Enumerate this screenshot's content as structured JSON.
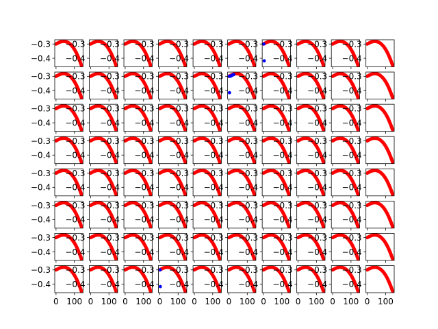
{
  "figure": {
    "rows": 8,
    "cols": 10
  },
  "chart_data": {
    "type": "scatter",
    "grid": false,
    "legend": "none",
    "xlim": [
      -7,
      147
    ],
    "ylim": [
      -0.46,
      -0.27
    ],
    "xticks": [
      0,
      100
    ],
    "xtick_labels": [
      "0",
      "100"
    ],
    "yticks": [
      -0.3,
      -0.4
    ],
    "ytick_labels": [
      "−0.3",
      "−0.4"
    ],
    "curve_color": "#ff0000",
    "marker_color": "#0000ff",
    "curve": {
      "x": [
        0,
        10,
        20,
        30,
        40,
        50,
        60,
        70,
        80,
        90,
        100,
        110,
        120,
        130,
        140
      ],
      "y": [
        -0.3,
        -0.293,
        -0.287,
        -0.283,
        -0.281,
        -0.282,
        -0.286,
        -0.293,
        -0.304,
        -0.318,
        -0.337,
        -0.36,
        -0.388,
        -0.42,
        -0.455
      ]
    },
    "markers": [
      {
        "row": 0,
        "col": 6,
        "x": [
          2,
          4
        ],
        "y": [
          -0.3,
          -0.418
        ]
      },
      {
        "row": 1,
        "col": 5,
        "x": [
          2,
          6,
          10,
          14,
          18,
          22,
          26
        ],
        "y": [
          -0.3,
          -0.3,
          -0.298,
          -0.295,
          -0.292,
          -0.29,
          -0.288
        ]
      },
      {
        "row": 1,
        "col": 5,
        "x": [
          3
        ],
        "y": [
          -0.415
        ]
      },
      {
        "row": 7,
        "col": 3,
        "x": [
          2,
          3
        ],
        "y": [
          -0.3,
          -0.417
        ]
      }
    ]
  }
}
